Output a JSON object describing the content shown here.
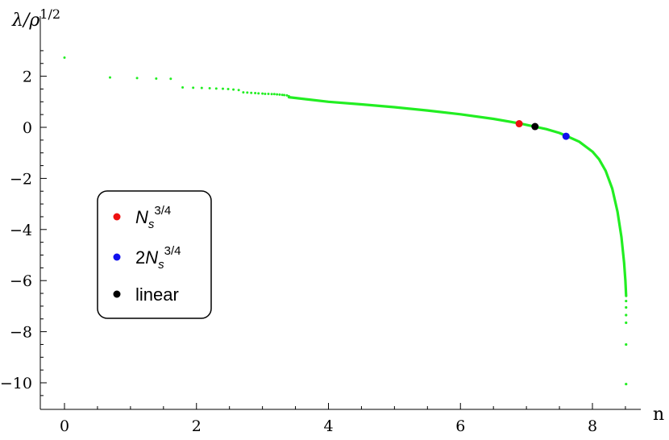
{
  "chart_data": {
    "type": "scatter",
    "xlabel": "n",
    "ylabel_parts": {
      "lambda": "λ/ρ",
      "exponent": "1/2"
    },
    "xlim": [
      -0.35,
      8.75
    ],
    "ylim": [
      -10.9,
      3.4
    ],
    "x_ticks": [
      0,
      2,
      4,
      6,
      8
    ],
    "y_ticks": [
      2,
      0,
      -2,
      -4,
      -6,
      -8,
      -10
    ],
    "x_tick_labels": [
      "0",
      "2",
      "4",
      "6",
      "8"
    ],
    "y_tick_labels": [
      "2",
      "0",
      "−2",
      "−4",
      "−6",
      "−8",
      "−10"
    ],
    "grid": false,
    "legend_placement": "middle-left",
    "series": [
      {
        "color": "#22ee22",
        "marker": "small-dot",
        "description_points": [
          [
            0.0,
            2.73
          ],
          [
            0.69,
            1.95
          ],
          [
            1.1,
            1.93
          ],
          [
            1.39,
            1.91
          ],
          [
            1.61,
            1.9
          ],
          [
            1.79,
            1.56
          ],
          [
            1.95,
            1.55
          ],
          [
            2.08,
            1.54
          ],
          [
            2.2,
            1.53
          ],
          [
            2.3,
            1.52
          ],
          [
            2.4,
            1.51
          ],
          [
            2.48,
            1.5
          ],
          [
            2.56,
            1.48
          ],
          [
            2.64,
            1.46
          ],
          [
            2.71,
            1.37
          ],
          [
            2.77,
            1.36
          ],
          [
            2.83,
            1.35
          ],
          [
            2.89,
            1.34
          ],
          [
            2.94,
            1.33
          ],
          [
            3.0,
            1.32
          ],
          [
            3.04,
            1.31
          ],
          [
            3.09,
            1.31
          ],
          [
            3.14,
            1.3
          ],
          [
            3.18,
            1.3
          ],
          [
            3.22,
            1.29
          ],
          [
            3.26,
            1.28
          ],
          [
            3.3,
            1.27
          ],
          [
            3.33,
            1.26
          ],
          [
            3.37,
            1.25
          ],
          [
            3.4,
            1.22
          ]
        ],
        "dense_curve": [
          [
            3.4,
            1.18
          ],
          [
            4.0,
            1.0
          ],
          [
            4.5,
            0.9
          ],
          [
            5.0,
            0.79
          ],
          [
            5.5,
            0.66
          ],
          [
            6.0,
            0.51
          ],
          [
            6.5,
            0.33
          ],
          [
            6.9,
            0.15
          ],
          [
            7.1,
            0.04
          ],
          [
            7.3,
            -0.07
          ],
          [
            7.5,
            -0.22
          ],
          [
            7.6,
            -0.33
          ],
          [
            7.8,
            -0.56
          ],
          [
            8.0,
            -0.95
          ],
          [
            8.1,
            -1.25
          ],
          [
            8.2,
            -1.7
          ],
          [
            8.3,
            -2.4
          ],
          [
            8.38,
            -3.3
          ],
          [
            8.44,
            -4.3
          ],
          [
            8.48,
            -5.3
          ],
          [
            8.5,
            -6.0
          ],
          [
            8.51,
            -6.6
          ]
        ],
        "tail_points": [
          [
            8.51,
            -6.8
          ],
          [
            8.51,
            -7.05
          ],
          [
            8.51,
            -7.35
          ],
          [
            8.51,
            -7.65
          ],
          [
            8.51,
            -8.5
          ],
          [
            8.51,
            -10.05
          ]
        ]
      }
    ],
    "highlight_points": [
      {
        "name": "N_s^{3/4}",
        "x": 6.89,
        "y": 0.14,
        "color": "#ee1111"
      },
      {
        "name": "linear",
        "x": 7.13,
        "y": 0.03,
        "color": "#000000"
      },
      {
        "name": "2N_s^{3/4}",
        "x": 7.6,
        "y": -0.35,
        "color": "#1111ee"
      }
    ],
    "legend": [
      {
        "base": "N",
        "sub": "s",
        "sup": "3/4",
        "prefix": "",
        "color": "#ee1111"
      },
      {
        "base": "N",
        "sub": "s",
        "sup": "3/4",
        "prefix": "2",
        "color": "#1111ee"
      },
      {
        "text": "linear",
        "color": "#000000"
      }
    ]
  }
}
